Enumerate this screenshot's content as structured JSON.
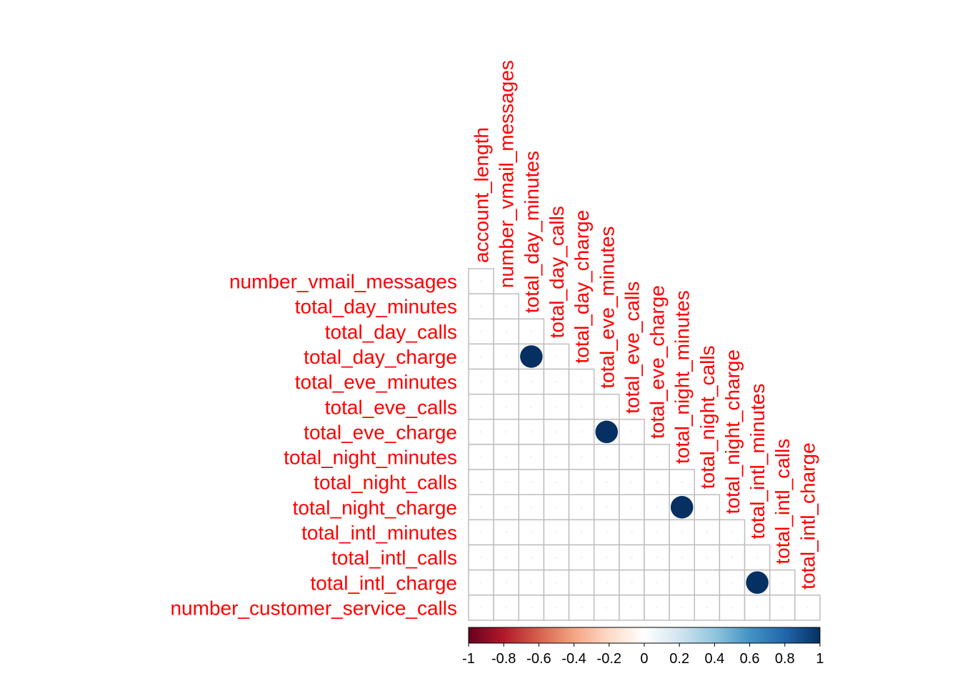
{
  "chart_data": {
    "type": "heatmap",
    "layout": "lower-triangle",
    "method": "circle",
    "col_labels": [
      "account_length",
      "number_vmail_messages",
      "total_day_minutes",
      "total_day_calls",
      "total_day_charge",
      "total_eve_minutes",
      "total_eve_calls",
      "total_eve_charge",
      "total_night_minutes",
      "total_night_calls",
      "total_night_charge",
      "total_intl_minutes",
      "total_intl_calls",
      "total_intl_charge"
    ],
    "row_labels": [
      "number_vmail_messages",
      "total_day_minutes",
      "total_day_calls",
      "total_day_charge",
      "total_eve_minutes",
      "total_eve_calls",
      "total_eve_charge",
      "total_night_minutes",
      "total_night_calls",
      "total_night_charge",
      "total_intl_minutes",
      "total_intl_calls",
      "total_intl_charge",
      "number_customer_service_calls"
    ],
    "correlations": [
      {
        "row": "total_day_charge",
        "col": "total_day_minutes",
        "value": 1.0
      },
      {
        "row": "total_eve_charge",
        "col": "total_eve_minutes",
        "value": 1.0
      },
      {
        "row": "total_night_charge",
        "col": "total_night_minutes",
        "value": 1.0
      },
      {
        "row": "total_intl_charge",
        "col": "total_intl_minutes",
        "value": 1.0
      }
    ],
    "default_value": 0.0,
    "colorbar": {
      "range": [
        -1,
        1
      ],
      "ticks": [
        "-1",
        "-0.8",
        "-0.6",
        "-0.4",
        "-0.2",
        "0",
        "0.2",
        "0.4",
        "0.6",
        "0.8",
        "1"
      ],
      "colors": [
        "#67001f",
        "#b2182b",
        "#d6604d",
        "#f4a582",
        "#fddbc7",
        "#ffffff",
        "#d1e5f0",
        "#92c5de",
        "#4393c3",
        "#2166ac",
        "#053061"
      ]
    },
    "label_color": "#ff0000",
    "grid_color": "#bebebe"
  }
}
